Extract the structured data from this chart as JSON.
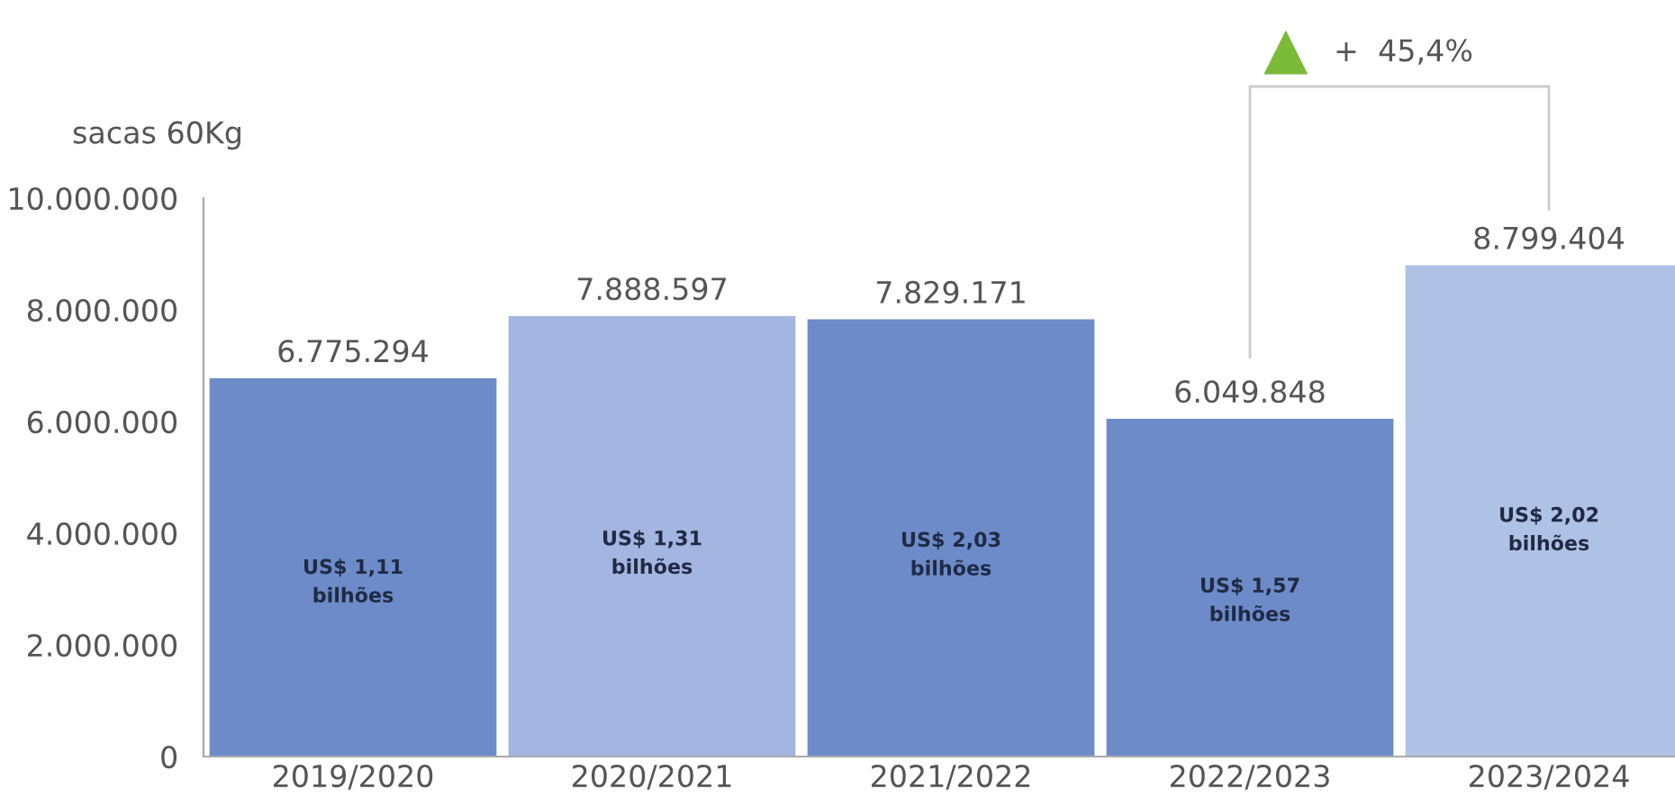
{
  "chart_data": {
    "type": "bar",
    "ylabel": "sacas 60Kg",
    "categories": [
      "2019/2020",
      "2020/2021",
      "2021/2022",
      "2022/2023",
      "2023/2024"
    ],
    "values": [
      6775294,
      7888597,
      7829171,
      6049848,
      8799404
    ],
    "colors": [
      "#6d8bc8",
      "#a3b5e0",
      "#6d8bc8",
      "#6d8bc8",
      "#b0c1e6"
    ],
    "value_labels": [
      "6.775.294",
      "7.888.597",
      "7.829.171",
      "6.049.848",
      "8.799.404"
    ],
    "ylim": [
      0,
      10000000
    ],
    "yticks": [
      0,
      {
        "value": 2000000,
        "label": "2.000.000"
      },
      {
        "value": 4000000,
        "label": "4.000.000"
      },
      {
        "value": 6000000,
        "label": "6.000.000"
      },
      {
        "value": 8000000,
        "label": "8.000.000"
      },
      {
        "value": 10000000,
        "label": "10.000.000"
      }
    ],
    "grid": false,
    "annotations": [
      "US$ 1,11\nbilhões",
      "US$ 1,31\nbilhões",
      "US$ 2,03\nbilhões",
      "US$ 1,57\nbilhões",
      "US$ 2,02\nbilhões",
      "+  45,4%"
    ]
  }
}
